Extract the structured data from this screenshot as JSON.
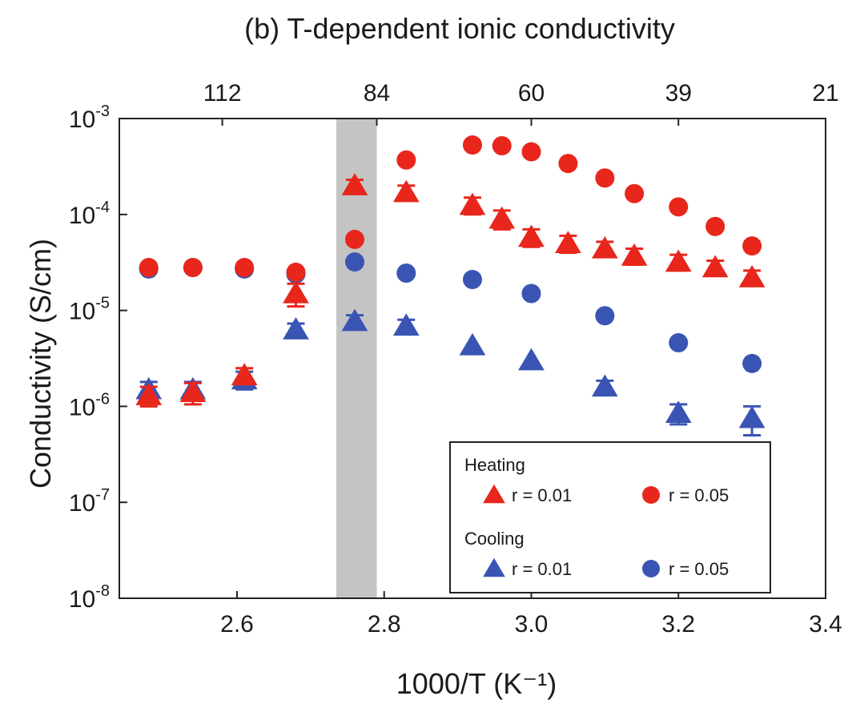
{
  "chart_data": {
    "type": "scatter",
    "title": "(b) T-dependent ionic conductivity",
    "xlabel": "1000/T (K⁻¹)",
    "ylabel": "Conductivity (S/cm)",
    "xlim": [
      2.44,
      3.4
    ],
    "ylim": [
      1e-08,
      0.001
    ],
    "yscale": "log",
    "grid": false,
    "x_ticks": [
      2.6,
      2.8,
      3.0,
      3.2,
      3.4
    ],
    "x_tick_labels": [
      "2.6",
      "2.8",
      "3.0",
      "3.2",
      "3.4"
    ],
    "y_ticks": [
      1e-08,
      1e-07,
      1e-06,
      1e-05,
      0.0001,
      0.001
    ],
    "y_tick_labels": [
      {
        "base": "10",
        "exp": "-8"
      },
      {
        "base": "10",
        "exp": "-7"
      },
      {
        "base": "10",
        "exp": "-6"
      },
      {
        "base": "10",
        "exp": "-5"
      },
      {
        "base": "10",
        "exp": "-4"
      },
      {
        "base": "10",
        "exp": "-3"
      }
    ],
    "top_axis": {
      "label": "",
      "tick_labels": [
        "112",
        "84",
        "60",
        "39",
        "21"
      ],
      "tick_positions_x": [
        2.58,
        2.79,
        3.0,
        3.2,
        3.4
      ]
    },
    "shaded_region": {
      "x": [
        2.735,
        2.79
      ],
      "color": "#c4c4c4"
    },
    "legend": {
      "placement": "bottom-right",
      "groups": [
        {
          "title": "Heating",
          "entries": [
            "r = 0.01",
            "r = 0.05"
          ]
        },
        {
          "title": "Cooling",
          "entries": [
            "r = 0.01",
            "r = 0.05"
          ]
        }
      ]
    },
    "series": [
      {
        "name": "r = 0.01",
        "group": "Heating",
        "marker": "triangle",
        "color": "#e8261c",
        "x": [
          2.48,
          2.54,
          2.61,
          2.68,
          2.76,
          2.83,
          2.92,
          2.96,
          3.0,
          3.05,
          3.1,
          3.14,
          3.2,
          3.25,
          3.3
        ],
        "y": [
          1.3e-06,
          1.4e-06,
          2.1e-06,
          1.5e-05,
          0.0002,
          0.00017,
          0.000125,
          9e-05,
          5.8e-05,
          5e-05,
          4.4e-05,
          3.7e-05,
          3.2e-05,
          2.8e-05,
          2.2e-05
        ],
        "err": [
          3e-07,
          3.5e-07,
          4e-07,
          4e-06,
          3e-05,
          3e-05,
          2.5e-05,
          2e-05,
          1.2e-05,
          1e-05,
          8e-06,
          7e-06,
          6e-06,
          5e-06,
          4e-06
        ]
      },
      {
        "name": "r = 0.05",
        "group": "Heating",
        "marker": "circle",
        "color": "#e8261c",
        "x": [
          2.48,
          2.54,
          2.61,
          2.68,
          2.76,
          2.83,
          2.92,
          2.96,
          3.0,
          3.05,
          3.1,
          3.14,
          3.2,
          3.25,
          3.3
        ],
        "y": [
          2.8e-05,
          2.8e-05,
          2.8e-05,
          2.5e-05,
          5.5e-05,
          0.00037,
          0.00053,
          0.00052,
          0.00045,
          0.00034,
          0.00024,
          0.000165,
          0.00012,
          7.5e-05,
          4.7e-05
        ]
      },
      {
        "name": "r = 0.01",
        "group": "Cooling",
        "marker": "triangle",
        "color": "#3a54b4",
        "x": [
          2.48,
          2.54,
          2.61,
          2.68,
          2.76,
          2.83,
          2.92,
          3.0,
          3.1,
          3.2,
          3.3
        ],
        "y": [
          1.5e-06,
          1.5e-06,
          1.9e-06,
          6.3e-06,
          7.7e-06,
          6.9e-06,
          4.3e-06,
          3e-06,
          1.6e-06,
          8.5e-07,
          7.5e-07
        ],
        "err": [
          3e-07,
          3e-07,
          4e-07,
          1e-06,
          1.2e-06,
          1.1e-06,
          0,
          0,
          2.5e-07,
          2e-07,
          2.5e-07
        ]
      },
      {
        "name": "r = 0.05",
        "group": "Cooling",
        "marker": "circle",
        "color": "#3a54b4",
        "x": [
          2.48,
          2.54,
          2.61,
          2.68,
          2.76,
          2.83,
          2.92,
          3.0,
          3.1,
          3.2,
          3.3
        ],
        "y": [
          2.7e-05,
          2.8e-05,
          2.7e-05,
          2.4e-05,
          3.2e-05,
          2.45e-05,
          2.1e-05,
          1.5e-05,
          8.8e-06,
          4.6e-06,
          2.8e-06
        ]
      }
    ]
  }
}
